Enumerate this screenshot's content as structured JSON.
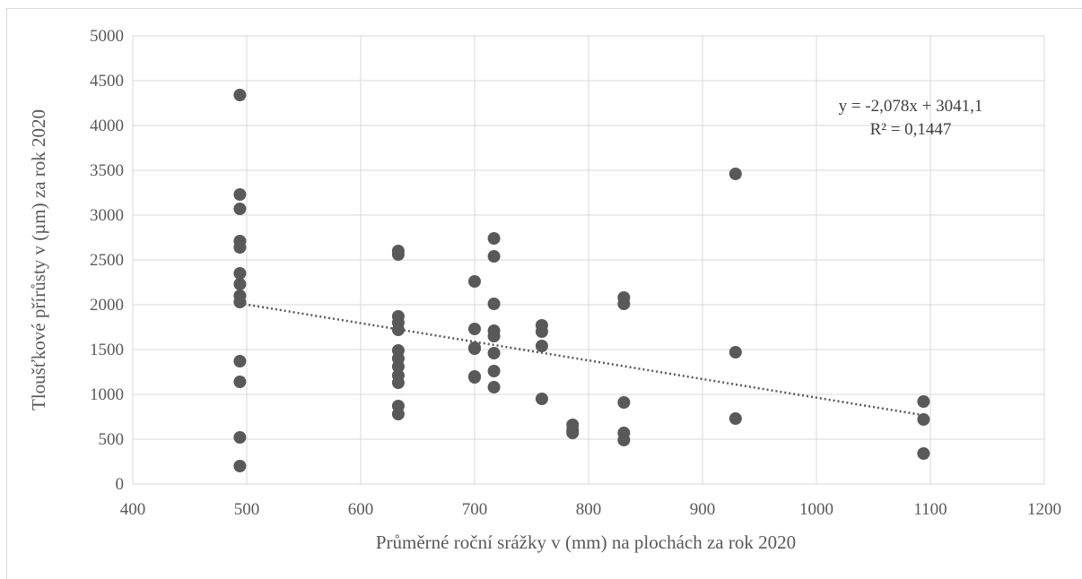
{
  "chart_data": {
    "type": "scatter",
    "xlabel": "Průměrné roční srážky v (mm) na plochách za rok 2020",
    "ylabel": "Tloušťkové přírůsty v (µm) za rok 2020",
    "xlim": [
      400,
      1200
    ],
    "ylim": [
      0,
      5000
    ],
    "xticks": [
      400,
      500,
      600,
      700,
      800,
      900,
      1000,
      1100,
      1200
    ],
    "yticks": [
      0,
      500,
      1000,
      1500,
      2000,
      2500,
      3000,
      3500,
      4000,
      4500,
      5000
    ],
    "grid": true,
    "marker_color": "#595959",
    "trendline_color": "#595959",
    "trendline": {
      "type": "linear",
      "slope": -2.078,
      "intercept": 3041.1,
      "x_range": [
        494,
        1094
      ]
    },
    "annotations": {
      "equation": "y = -2,078x + 3041,1",
      "r_squared": "R² = 0,1447"
    },
    "points": [
      [
        494,
        4340
      ],
      [
        494,
        3230
      ],
      [
        494,
        3070
      ],
      [
        494,
        2710
      ],
      [
        494,
        2640
      ],
      [
        494,
        2350
      ],
      [
        494,
        2230
      ],
      [
        494,
        2100
      ],
      [
        494,
        2030
      ],
      [
        494,
        1370
      ],
      [
        494,
        1140
      ],
      [
        494,
        520
      ],
      [
        494,
        200
      ],
      [
        633,
        2600
      ],
      [
        633,
        2560
      ],
      [
        633,
        1870
      ],
      [
        633,
        1800
      ],
      [
        633,
        1720
      ],
      [
        633,
        1490
      ],
      [
        633,
        1400
      ],
      [
        633,
        1310
      ],
      [
        633,
        1210
      ],
      [
        633,
        1130
      ],
      [
        633,
        870
      ],
      [
        633,
        780
      ],
      [
        700,
        2260
      ],
      [
        700,
        1730
      ],
      [
        700,
        1520
      ],
      [
        700,
        1510
      ],
      [
        700,
        1200
      ],
      [
        700,
        1190
      ],
      [
        717,
        2740
      ],
      [
        717,
        2540
      ],
      [
        717,
        2010
      ],
      [
        717,
        1710
      ],
      [
        717,
        1650
      ],
      [
        717,
        1460
      ],
      [
        717,
        1260
      ],
      [
        717,
        1080
      ],
      [
        759,
        1770
      ],
      [
        759,
        1700
      ],
      [
        759,
        1540
      ],
      [
        759,
        950
      ],
      [
        786,
        660
      ],
      [
        786,
        600
      ],
      [
        786,
        570
      ],
      [
        831,
        2080
      ],
      [
        831,
        2010
      ],
      [
        831,
        910
      ],
      [
        831,
        570
      ],
      [
        831,
        490
      ],
      [
        929,
        3460
      ],
      [
        929,
        1470
      ],
      [
        929,
        730
      ],
      [
        1094,
        920
      ],
      [
        1094,
        720
      ],
      [
        1094,
        340
      ]
    ]
  }
}
